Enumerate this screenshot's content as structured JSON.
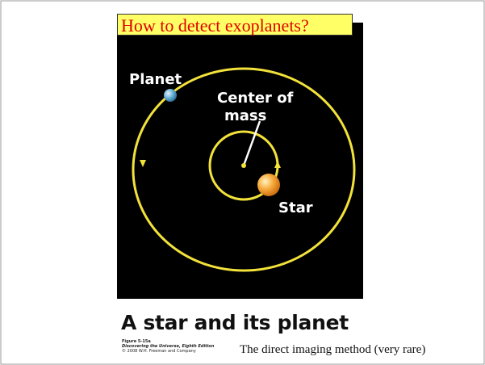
{
  "slide": {
    "title": "How to detect exoplanets?",
    "figure": {
      "planet_label": "Planet",
      "center_label_1": "Center of",
      "center_label_2": "mass",
      "star_label": "Star"
    },
    "heading": "A star and its planet",
    "caption": [
      "Figure 5-15a",
      "Discovering the Universe, Eighth Edition",
      "© 2008 W.H. Freeman and Company"
    ],
    "text": "The direct imaging method (very rare)"
  }
}
